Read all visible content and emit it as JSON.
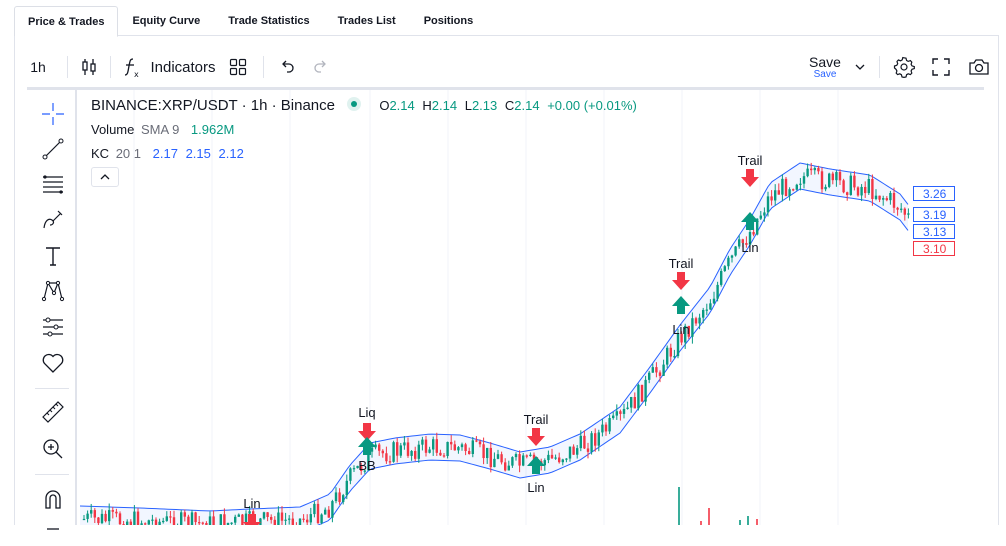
{
  "tabs": [
    {
      "label": "Price & Trades",
      "active": true
    },
    {
      "label": "Equity Curve",
      "active": false
    },
    {
      "label": "Trade Statistics",
      "active": false
    },
    {
      "label": "Trades List",
      "active": false
    },
    {
      "label": "Positions",
      "active": false
    }
  ],
  "toolbar": {
    "interval": "1h",
    "indicators_label": "Indicators",
    "save_label": "Save",
    "save_sublabel": "Save"
  },
  "legend": {
    "symbol": "BINANCE:XRP/USDT · 1h · Binance",
    "o_label": "O",
    "o_value": "2.14",
    "h_label": "H",
    "h_value": "2.14",
    "l_label": "L",
    "l_value": "2.13",
    "c_label": "C",
    "c_value": "2.14",
    "change": "+0.00 (+0.01%)",
    "volume_label": "Volume",
    "volume_sma": "SMA 9",
    "volume_value": "1.962M",
    "kc_label": "KC",
    "kc_params": "20 1",
    "kc_upper": "2.17",
    "kc_basis": "2.15",
    "kc_lower": "2.12"
  },
  "price_labels": [
    {
      "value": "3.26",
      "color": "#2962ff"
    },
    {
      "value": "3.19",
      "color": "#2962ff"
    },
    {
      "value": "3.13",
      "color": "#2962ff"
    },
    {
      "value": "3.10",
      "color": "#f23645"
    }
  ],
  "trade_markers": [
    {
      "label": "Lin",
      "side": "sell",
      "x": 252
    },
    {
      "label": "Liq",
      "side": "sell",
      "x": 367
    },
    {
      "label": "BB",
      "side": "buy",
      "x": 367
    },
    {
      "label": "Trail",
      "side": "sell",
      "x": 536
    },
    {
      "label": "Lin",
      "side": "buy",
      "x": 536
    },
    {
      "label": "Trail",
      "side": "sell",
      "x": 681
    },
    {
      "label": "Lin",
      "side": "buy",
      "x": 681
    },
    {
      "label": "Trail",
      "side": "sell",
      "x": 750
    },
    {
      "label": "Lin",
      "side": "buy",
      "x": 750
    }
  ],
  "colors": {
    "up": "#089981",
    "down": "#f23645",
    "channel": "#2962ff",
    "accent": "#2962ff"
  },
  "icons": {
    "crosshair": "crosshair-icon",
    "trendline": "trendline-icon",
    "fib": "fib-retracement-icon",
    "brush": "brush-icon",
    "text": "text-icon",
    "pattern": "pattern-icon",
    "forecast": "forecast-icon",
    "favorites": "heart-icon",
    "ruler": "ruler-icon",
    "zoom": "zoom-in-icon",
    "magnet": "magnet-icon"
  }
}
